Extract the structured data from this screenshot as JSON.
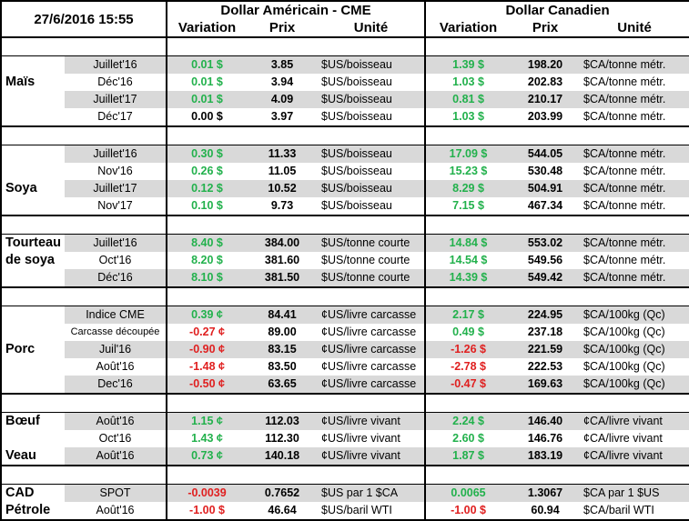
{
  "header": {
    "datetime": "27/6/2016 15:55",
    "usd_title": "Dollar Américain - CME",
    "cad_title": "Dollar Canadien",
    "col_variation": "Variation",
    "col_prix": "Prix",
    "col_unite": "Unité"
  },
  "groups": [
    {
      "name": "Maïs",
      "rows": [
        {
          "contract": "Juillet'16",
          "usd_var": "0.01 $",
          "usd_var_sign": "pos",
          "usd_price": "3.85",
          "usd_unit": "$US/boisseau",
          "cad_var": "1.39 $",
          "cad_var_sign": "pos",
          "cad_price": "198.20",
          "cad_unit": "$CA/tonne métr."
        },
        {
          "contract": "Déc'16",
          "usd_var": "0.01 $",
          "usd_var_sign": "pos",
          "usd_price": "3.94",
          "usd_unit": "$US/boisseau",
          "cad_var": "1.03 $",
          "cad_var_sign": "pos",
          "cad_price": "202.83",
          "cad_unit": "$CA/tonne métr."
        },
        {
          "contract": "Juillet'17",
          "usd_var": "0.01 $",
          "usd_var_sign": "pos",
          "usd_price": "4.09",
          "usd_unit": "$US/boisseau",
          "cad_var": "0.81 $",
          "cad_var_sign": "pos",
          "cad_price": "210.17",
          "cad_unit": "$CA/tonne métr."
        },
        {
          "contract": "Déc'17",
          "usd_var": "0.00 $",
          "usd_var_sign": "zero",
          "usd_price": "3.97",
          "usd_unit": "$US/boisseau",
          "cad_var": "1.03 $",
          "cad_var_sign": "pos",
          "cad_price": "203.99",
          "cad_unit": "$CA/tonne métr."
        }
      ]
    },
    {
      "name": "Soya",
      "rows": [
        {
          "contract": "Juillet'16",
          "usd_var": "0.30 $",
          "usd_var_sign": "pos",
          "usd_price": "11.33",
          "usd_unit": "$US/boisseau",
          "cad_var": "17.09 $",
          "cad_var_sign": "pos",
          "cad_price": "544.05",
          "cad_unit": "$CA/tonne métr."
        },
        {
          "contract": "Nov'16",
          "usd_var": "0.26 $",
          "usd_var_sign": "pos",
          "usd_price": "11.05",
          "usd_unit": "$US/boisseau",
          "cad_var": "15.23 $",
          "cad_var_sign": "pos",
          "cad_price": "530.48",
          "cad_unit": "$CA/tonne métr."
        },
        {
          "contract": "Juillet'17",
          "usd_var": "0.12 $",
          "usd_var_sign": "pos",
          "usd_price": "10.52",
          "usd_unit": "$US/boisseau",
          "cad_var": "8.29 $",
          "cad_var_sign": "pos",
          "cad_price": "504.91",
          "cad_unit": "$CA/tonne métr."
        },
        {
          "contract": "Nov'17",
          "usd_var": "0.10 $",
          "usd_var_sign": "pos",
          "usd_price": "9.73",
          "usd_unit": "$US/boisseau",
          "cad_var": "7.15 $",
          "cad_var_sign": "pos",
          "cad_price": "467.34",
          "cad_unit": "$CA/tonne métr."
        }
      ]
    },
    {
      "name": "Tourteau de soya",
      "name_line1": "Tourteau",
      "name_line2": "de soya",
      "rows": [
        {
          "contract": "Juillet'16",
          "usd_var": "8.40 $",
          "usd_var_sign": "pos",
          "usd_price": "384.00",
          "usd_unit": "$US/tonne courte",
          "cad_var": "14.84 $",
          "cad_var_sign": "pos",
          "cad_price": "553.02",
          "cad_unit": "$CA/tonne métr."
        },
        {
          "contract": "Oct'16",
          "usd_var": "8.20 $",
          "usd_var_sign": "pos",
          "usd_price": "381.60",
          "usd_unit": "$US/tonne courte",
          "cad_var": "14.54 $",
          "cad_var_sign": "pos",
          "cad_price": "549.56",
          "cad_unit": "$CA/tonne métr."
        },
        {
          "contract": "Déc'16",
          "usd_var": "8.10 $",
          "usd_var_sign": "pos",
          "usd_price": "381.50",
          "usd_unit": "$US/tonne courte",
          "cad_var": "14.39 $",
          "cad_var_sign": "pos",
          "cad_price": "549.42",
          "cad_unit": "$CA/tonne métr."
        }
      ]
    },
    {
      "name": "Porc",
      "rows": [
        {
          "contract": "Indice CME",
          "usd_var": "0.39 ¢",
          "usd_var_sign": "pos",
          "usd_price": "84.41",
          "usd_unit": "¢US/livre carcasse",
          "cad_var": "2.17 $",
          "cad_var_sign": "pos",
          "cad_price": "224.95",
          "cad_unit": "$CA/100kg (Qc)"
        },
        {
          "contract": "Carcasse découpée",
          "usd_var": "-0.27 ¢",
          "usd_var_sign": "neg",
          "usd_price": "89.00",
          "usd_unit": "¢US/livre carcasse",
          "cad_var": "0.49 $",
          "cad_var_sign": "pos",
          "cad_price": "237.18",
          "cad_unit": "$CA/100kg (Qc)"
        },
        {
          "contract": "Juil'16",
          "usd_var": "-0.90 ¢",
          "usd_var_sign": "neg",
          "usd_price": "83.15",
          "usd_unit": "¢US/livre carcasse",
          "cad_var": "-1.26 $",
          "cad_var_sign": "neg",
          "cad_price": "221.59",
          "cad_unit": "$CA/100kg (Qc)"
        },
        {
          "contract": "Août'16",
          "usd_var": "-1.48 ¢",
          "usd_var_sign": "neg",
          "usd_price": "83.50",
          "usd_unit": "¢US/livre carcasse",
          "cad_var": "-2.78 $",
          "cad_var_sign": "neg",
          "cad_price": "222.53",
          "cad_unit": "$CA/100kg (Qc)"
        },
        {
          "contract": "Dec'16",
          "usd_var": "-0.50 ¢",
          "usd_var_sign": "neg",
          "usd_price": "63.65",
          "usd_unit": "¢US/livre carcasse",
          "cad_var": "-0.47 $",
          "cad_var_sign": "neg",
          "cad_price": "169.63",
          "cad_unit": "$CA/100kg (Qc)"
        }
      ]
    },
    {
      "name": "Bœuf / Veau",
      "name_line1": "Bœuf",
      "name_line3": "Veau",
      "rows": [
        {
          "contract": "Août'16",
          "usd_var": "1.15 ¢",
          "usd_var_sign": "pos",
          "usd_price": "112.03",
          "usd_unit": "¢US/livre vivant",
          "cad_var": "2.24 $",
          "cad_var_sign": "pos",
          "cad_price": "146.40",
          "cad_unit": "¢CA/livre vivant"
        },
        {
          "contract": "Oct'16",
          "usd_var": "1.43 ¢",
          "usd_var_sign": "pos",
          "usd_price": "112.30",
          "usd_unit": "¢US/livre vivant",
          "cad_var": "2.60 $",
          "cad_var_sign": "pos",
          "cad_price": "146.76",
          "cad_unit": "¢CA/livre vivant"
        },
        {
          "contract": "Août'16",
          "usd_var": "0.73 ¢",
          "usd_var_sign": "pos",
          "usd_price": "140.18",
          "usd_unit": "¢US/livre vivant",
          "cad_var": "1.87 $",
          "cad_var_sign": "pos",
          "cad_price": "183.19",
          "cad_unit": "¢CA/livre vivant"
        }
      ]
    },
    {
      "name": "CAD / Pétrole",
      "name_line1": "CAD",
      "name_line2": "Pétrole",
      "rows": [
        {
          "contract": "SPOT",
          "usd_var": "-0.0039",
          "usd_var_sign": "neg",
          "usd_price": "0.7652",
          "usd_unit": "$US par 1 $CA",
          "cad_var": "0.0065",
          "cad_var_sign": "pos",
          "cad_price": "1.3067",
          "cad_unit": "$CA par 1 $US"
        },
        {
          "contract": "Août'16",
          "usd_var": "-1.00 $",
          "usd_var_sign": "neg",
          "usd_price": "46.64",
          "usd_unit": "$US/baril WTI",
          "cad_var": "-1.00 $",
          "cad_var_sign": "neg",
          "cad_price": "60.94",
          "cad_unit": "$CA/baril WTI"
        }
      ]
    }
  ],
  "colors": {
    "positive": "#22b14c",
    "negative": "#e02020",
    "row_shade": "#d9d9d9",
    "border": "#000000"
  }
}
